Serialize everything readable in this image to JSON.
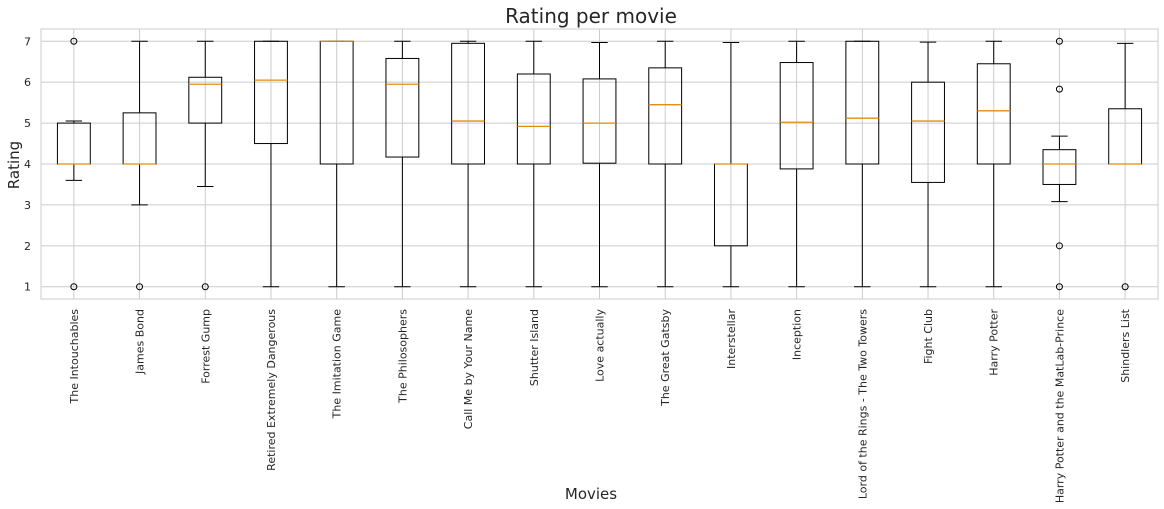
{
  "chart_data": {
    "type": "box",
    "title": "Rating per movie",
    "xlabel": "Movies",
    "ylabel": "Rating",
    "ylim": [
      0.7,
      7.3
    ],
    "yticks": [
      1,
      2,
      3,
      4,
      5,
      6,
      7
    ],
    "grid": true,
    "colors": {
      "box": "#000000",
      "median": "#e08e0b",
      "grid": "#cccccc"
    },
    "categories": [
      "The Intouchables",
      "James Bond",
      "Forrest Gump",
      "Retired Extremely Dangerous",
      "The Imitation Game",
      "The Philosophers",
      "Call Me by Your Name",
      "Shutter Island",
      "Love actually",
      "The Great Gatsby",
      "Interstellar",
      "Inception",
      "Lord of the Rings - The Two Towers",
      "Fight Club",
      "Harry Potter",
      "Harry Potter and the MatLab-Prince",
      "Shindlers List"
    ],
    "boxes": [
      {
        "whislo": 3.6,
        "q1": 4.0,
        "med": 4.0,
        "q3": 5.0,
        "whishi": 5.05,
        "fliers": [
          7,
          1
        ]
      },
      {
        "whislo": 3.0,
        "q1": 4.0,
        "med": 4.0,
        "q3": 5.25,
        "whishi": 7.0,
        "fliers": [
          1
        ]
      },
      {
        "whislo": 3.45,
        "q1": 5.0,
        "med": 5.95,
        "q3": 6.12,
        "whishi": 7.0,
        "fliers": [
          1
        ]
      },
      {
        "whislo": 1.0,
        "q1": 4.5,
        "med": 6.05,
        "q3": 7.0,
        "whishi": 7.0,
        "fliers": []
      },
      {
        "whislo": 1.0,
        "q1": 4.0,
        "med": 7.0,
        "q3": 7.0,
        "whishi": 7.0,
        "fliers": []
      },
      {
        "whislo": 1.0,
        "q1": 4.17,
        "med": 5.95,
        "q3": 6.58,
        "whishi": 7.0,
        "fliers": []
      },
      {
        "whislo": 1.0,
        "q1": 4.0,
        "med": 5.05,
        "q3": 6.95,
        "whishi": 7.0,
        "fliers": []
      },
      {
        "whislo": 1.0,
        "q1": 4.0,
        "med": 4.92,
        "q3": 6.2,
        "whishi": 7.0,
        "fliers": []
      },
      {
        "whislo": 1.0,
        "q1": 4.02,
        "med": 5.0,
        "q3": 6.08,
        "whishi": 6.97,
        "fliers": []
      },
      {
        "whislo": 1.0,
        "q1": 4.0,
        "med": 5.45,
        "q3": 6.35,
        "whishi": 7.0,
        "fliers": []
      },
      {
        "whislo": 1.0,
        "q1": 2.0,
        "med": 4.0,
        "q3": 4.0,
        "whishi": 6.97,
        "fliers": []
      },
      {
        "whislo": 1.0,
        "q1": 3.88,
        "med": 5.02,
        "q3": 6.48,
        "whishi": 7.0,
        "fliers": []
      },
      {
        "whislo": 1.0,
        "q1": 4.0,
        "med": 5.12,
        "q3": 7.0,
        "whishi": 7.0,
        "fliers": []
      },
      {
        "whislo": 1.0,
        "q1": 3.55,
        "med": 5.05,
        "q3": 6.0,
        "whishi": 6.98,
        "fliers": []
      },
      {
        "whislo": 1.0,
        "q1": 4.0,
        "med": 5.3,
        "q3": 6.45,
        "whishi": 7.0,
        "fliers": []
      },
      {
        "whislo": 3.08,
        "q1": 3.5,
        "med": 4.0,
        "q3": 4.35,
        "whishi": 4.68,
        "fliers": [
          7,
          5.83,
          2,
          1
        ]
      },
      {
        "whislo": 4.0,
        "q1": 4.0,
        "med": 4.0,
        "q3": 5.35,
        "whishi": 6.95,
        "fliers": [
          1
        ]
      }
    ]
  }
}
